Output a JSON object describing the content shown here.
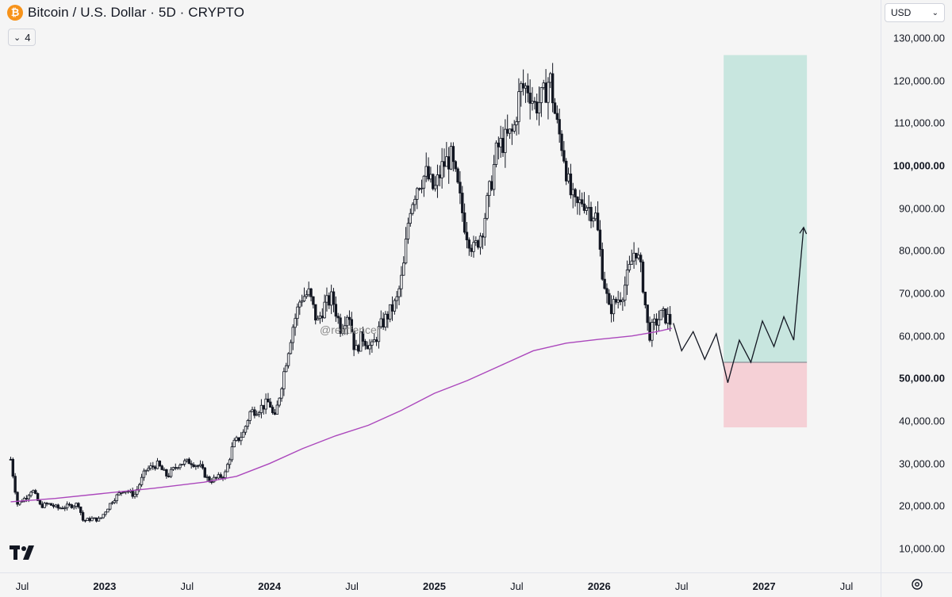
{
  "header": {
    "coin_icon_glyph": "₿",
    "title": "Bitcoin / U.S. Dollar · 5D · CRYPTO",
    "indicator_count": "4"
  },
  "currency": "USD",
  "watermark": "@rektfencer",
  "icons": {
    "coin": "bitcoin-icon",
    "chevron": "chevron-down-icon",
    "logo": "tradingview-logo",
    "settings": "gear-icon"
  },
  "colors": {
    "ma_line": "#ab47bc",
    "profit_zone": "#c8e6df",
    "loss_zone": "#f5d0d6",
    "candles": "#131722"
  },
  "price_axis": {
    "labels": [
      {
        "value": 130000,
        "text": "130,000.00",
        "bold": false
      },
      {
        "value": 120000,
        "text": "120,000.00",
        "bold": false
      },
      {
        "value": 110000,
        "text": "110,000.00",
        "bold": false
      },
      {
        "value": 100000,
        "text": "100,000.00",
        "bold": true
      },
      {
        "value": 90000,
        "text": "90,000.00",
        "bold": false
      },
      {
        "value": 80000,
        "text": "80,000.00",
        "bold": false
      },
      {
        "value": 70000,
        "text": "70,000.00",
        "bold": false
      },
      {
        "value": 60000,
        "text": "60,000.00",
        "bold": false
      },
      {
        "value": 50000,
        "text": "50,000.00",
        "bold": true
      },
      {
        "value": 40000,
        "text": "40,000.00",
        "bold": false
      },
      {
        "value": 30000,
        "text": "30,000.00",
        "bold": false
      },
      {
        "value": 20000,
        "text": "20,000.00",
        "bold": false
      },
      {
        "value": 10000,
        "text": "10,000.00",
        "bold": false
      }
    ]
  },
  "time_axis": {
    "labels": [
      {
        "date": 2022.5,
        "text": "Jul",
        "bold": false
      },
      {
        "date": 2023.0,
        "text": "2023",
        "bold": true
      },
      {
        "date": 2023.5,
        "text": "Jul",
        "bold": false
      },
      {
        "date": 2024.0,
        "text": "2024",
        "bold": true
      },
      {
        "date": 2024.5,
        "text": "Jul",
        "bold": false
      },
      {
        "date": 2025.0,
        "text": "2025",
        "bold": true
      },
      {
        "date": 2025.5,
        "text": "Jul",
        "bold": false
      },
      {
        "date": 2026.0,
        "text": "2026",
        "bold": true
      },
      {
        "date": 2026.5,
        "text": "Jul",
        "bold": false
      },
      {
        "date": 2027.0,
        "text": "2027",
        "bold": true
      },
      {
        "date": 2027.5,
        "text": "Jul",
        "bold": false
      }
    ]
  },
  "chart_data": {
    "type": "line",
    "title": "Bitcoin / U.S. Dollar · 5D · CRYPTO",
    "xlabel": "",
    "ylabel": "",
    "xlim": [
      2022.43,
      2027.52
    ],
    "ylim": [
      3000,
      134000
    ],
    "grid": false,
    "series": [
      {
        "role": "price",
        "points": [
          [
            2022.43,
            31000
          ],
          [
            2022.47,
            20500
          ],
          [
            2022.52,
            22000
          ],
          [
            2022.56,
            24000
          ],
          [
            2022.61,
            20000
          ],
          [
            2022.66,
            20500
          ],
          [
            2022.72,
            19500
          ],
          [
            2022.78,
            20000
          ],
          [
            2022.84,
            20500
          ],
          [
            2022.87,
            16500
          ],
          [
            2022.92,
            17000
          ],
          [
            2022.97,
            16800
          ],
          [
            2023.05,
            21500
          ],
          [
            2023.12,
            24000
          ],
          [
            2023.18,
            22500
          ],
          [
            2023.25,
            28500
          ],
          [
            2023.32,
            29800
          ],
          [
            2023.38,
            27000
          ],
          [
            2023.45,
            30000
          ],
          [
            2023.52,
            30500
          ],
          [
            2023.58,
            29200
          ],
          [
            2023.63,
            26000
          ],
          [
            2023.68,
            26500
          ],
          [
            2023.73,
            27500
          ],
          [
            2023.78,
            34500
          ],
          [
            2023.84,
            37000
          ],
          [
            2023.88,
            42000
          ],
          [
            2023.94,
            43000
          ],
          [
            2024.0,
            44500
          ],
          [
            2024.03,
            40000
          ],
          [
            2024.08,
            50000
          ],
          [
            2024.14,
            62000
          ],
          [
            2024.19,
            69000
          ],
          [
            2024.24,
            70000
          ],
          [
            2024.29,
            63000
          ],
          [
            2024.33,
            67000
          ],
          [
            2024.38,
            69000
          ],
          [
            2024.43,
            62000
          ],
          [
            2024.48,
            66000
          ],
          [
            2024.52,
            56000
          ],
          [
            2024.56,
            60000
          ],
          [
            2024.62,
            57000
          ],
          [
            2024.67,
            62000
          ],
          [
            2024.72,
            65000
          ],
          [
            2024.77,
            68000
          ],
          [
            2024.81,
            75000
          ],
          [
            2024.85,
            90000
          ],
          [
            2024.9,
            96000
          ],
          [
            2024.95,
            98000
          ],
          [
            2025.0,
            94000
          ],
          [
            2025.05,
            100000
          ],
          [
            2025.1,
            102000
          ],
          [
            2025.14,
            95000
          ],
          [
            2025.19,
            85000
          ],
          [
            2025.24,
            80000
          ],
          [
            2025.29,
            85000
          ],
          [
            2025.34,
            95000
          ],
          [
            2025.38,
            104000
          ],
          [
            2025.43,
            106000
          ],
          [
            2025.48,
            108000
          ],
          [
            2025.52,
            118000
          ],
          [
            2025.57,
            118500
          ],
          [
            2025.61,
            114000
          ],
          [
            2025.66,
            116000
          ],
          [
            2025.7,
            121000
          ],
          [
            2025.74,
            110000
          ],
          [
            2025.78,
            104000
          ],
          [
            2025.82,
            94000
          ],
          [
            2025.86,
            90000
          ],
          [
            2025.9,
            92000
          ],
          [
            2025.94,
            90000
          ],
          [
            2025.98,
            88000
          ],
          [
            2026.02,
            75000
          ],
          [
            2026.06,
            66000
          ],
          [
            2026.1,
            68000
          ],
          [
            2026.14,
            70000
          ],
          [
            2026.18,
            75000
          ],
          [
            2026.22,
            81000
          ],
          [
            2026.26,
            74000
          ],
          [
            2026.3,
            60000
          ],
          [
            2026.34,
            63000
          ],
          [
            2026.38,
            65000
          ],
          [
            2026.42,
            64000
          ],
          [
            2026.44,
            62500
          ]
        ]
      },
      {
        "role": "moving_average",
        "points": [
          [
            2022.43,
            21000
          ],
          [
            2022.7,
            21800
          ],
          [
            2023.0,
            23000
          ],
          [
            2023.3,
            24200
          ],
          [
            2023.6,
            25600
          ],
          [
            2023.8,
            27000
          ],
          [
            2024.0,
            30000
          ],
          [
            2024.2,
            33500
          ],
          [
            2024.4,
            36500
          ],
          [
            2024.6,
            39000
          ],
          [
            2024.8,
            42500
          ],
          [
            2025.0,
            46500
          ],
          [
            2025.2,
            49500
          ],
          [
            2025.4,
            53000
          ],
          [
            2025.6,
            56500
          ],
          [
            2025.8,
            58300
          ],
          [
            2026.0,
            59200
          ],
          [
            2026.2,
            60000
          ],
          [
            2026.35,
            61000
          ],
          [
            2026.44,
            61800
          ]
        ]
      },
      {
        "role": "projection_path",
        "points": [
          [
            2026.45,
            63000
          ],
          [
            2026.5,
            56500
          ],
          [
            2026.57,
            61000
          ],
          [
            2026.64,
            54500
          ],
          [
            2026.71,
            60500
          ],
          [
            2026.78,
            49000
          ],
          [
            2026.85,
            59000
          ],
          [
            2026.92,
            53800
          ],
          [
            2026.99,
            63500
          ],
          [
            2027.06,
            57500
          ],
          [
            2027.12,
            64500
          ],
          [
            2027.18,
            59000
          ],
          [
            2027.24,
            85500
          ]
        ]
      }
    ],
    "position": {
      "entry": 53800,
      "target": 126000,
      "stop": 38500,
      "start": 2026.755,
      "end": 2027.26
    }
  }
}
